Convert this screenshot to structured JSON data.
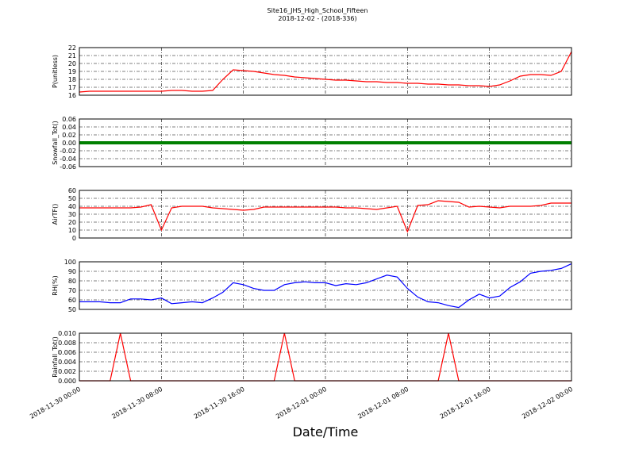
{
  "title": "Site16_JHS_High_School_Fifteen",
  "subtitle": "2018-12-02 - (2018-336)",
  "x_label": "Date/Time",
  "xlim": [
    "2018-11-30 00:00",
    "2018-12-02 00:00"
  ],
  "xticks": [
    "2018-11-30 00:00",
    "2018-11-30 08:00",
    "2018-11-30 16:00",
    "2018-12-01 00:00",
    "2018-12-01 08:00",
    "2018-12-01 16:00",
    "2018-12-02 00:00"
  ],
  "x": [
    "2018-11-30 00:00",
    "2018-11-30 01:00",
    "2018-11-30 02:00",
    "2018-11-30 03:00",
    "2018-11-30 04:00",
    "2018-11-30 05:00",
    "2018-11-30 06:00",
    "2018-11-30 07:00",
    "2018-11-30 08:00",
    "2018-11-30 09:00",
    "2018-11-30 10:00",
    "2018-11-30 11:00",
    "2018-11-30 12:00",
    "2018-11-30 13:00",
    "2018-11-30 14:00",
    "2018-11-30 15:00",
    "2018-11-30 16:00",
    "2018-11-30 17:00",
    "2018-11-30 18:00",
    "2018-11-30 19:00",
    "2018-11-30 20:00",
    "2018-11-30 21:00",
    "2018-11-30 22:00",
    "2018-11-30 23:00",
    "2018-12-01 00:00",
    "2018-12-01 01:00",
    "2018-12-01 02:00",
    "2018-12-01 03:00",
    "2018-12-01 04:00",
    "2018-12-01 05:00",
    "2018-12-01 06:00",
    "2018-12-01 07:00",
    "2018-12-01 08:00",
    "2018-12-01 09:00",
    "2018-12-01 10:00",
    "2018-12-01 11:00",
    "2018-12-01 12:00",
    "2018-12-01 13:00",
    "2018-12-01 14:00",
    "2018-12-01 15:00",
    "2018-12-01 16:00",
    "2018-12-01 17:00",
    "2018-12-01 18:00",
    "2018-12-01 19:00",
    "2018-12-01 20:00",
    "2018-12-01 21:00",
    "2018-12-01 22:00",
    "2018-12-01 23:00",
    "2018-12-02 00:00"
  ],
  "chart_data": [
    {
      "type": "line",
      "y_label": "P(unitless)",
      "ylim": [
        16,
        22
      ],
      "yticks": [
        16,
        17,
        18,
        19,
        20,
        21,
        22
      ],
      "grid": true,
      "series": [
        {
          "name": "P",
          "color": "#ff0000",
          "values": [
            16.4,
            16.5,
            16.5,
            16.5,
            16.5,
            16.5,
            16.5,
            16.5,
            16.5,
            16.6,
            16.6,
            16.5,
            16.5,
            16.6,
            18.0,
            19.2,
            19.1,
            19.0,
            18.8,
            18.6,
            18.5,
            18.3,
            18.2,
            18.1,
            18.0,
            17.9,
            17.9,
            17.8,
            17.7,
            17.7,
            17.6,
            17.6,
            17.5,
            17.5,
            17.4,
            17.4,
            17.3,
            17.3,
            17.2,
            17.2,
            17.1,
            17.3,
            17.8,
            18.4,
            18.6,
            18.6,
            18.5,
            19.0,
            21.5
          ]
        }
      ]
    },
    {
      "type": "line",
      "y_label": "Snowfall_Tot()",
      "ylim": [
        -0.06,
        0.06
      ],
      "yticks": [
        -0.06,
        -0.04,
        -0.02,
        {
          "value": 0,
          "label": "0.00"
        },
        0.02,
        0.04,
        0.06
      ],
      "grid": true,
      "series": [
        {
          "name": "Snowfall_Tot",
          "color": "#008000",
          "width": 4,
          "values": [
            0,
            0,
            0,
            0,
            0,
            0,
            0,
            0,
            0,
            0,
            0,
            0,
            0,
            0,
            0,
            0,
            0,
            0,
            0,
            0,
            0,
            0,
            0,
            0,
            0,
            0,
            0,
            0,
            0,
            0,
            0,
            0,
            0,
            0,
            0,
            0,
            0,
            0,
            0,
            0,
            0,
            0,
            0,
            0,
            0,
            0,
            0,
            0,
            0
          ]
        }
      ]
    },
    {
      "type": "line",
      "y_label": "AirTF()",
      "ylim": [
        0,
        60
      ],
      "yticks": [
        0,
        10,
        20,
        30,
        40,
        50,
        60
      ],
      "grid": true,
      "series": [
        {
          "name": "AirTF",
          "color": "#ff0000",
          "values": [
            38,
            38,
            38,
            38,
            38,
            38,
            39,
            42,
            10,
            38,
            40,
            40,
            40,
            38,
            37,
            36,
            35,
            36,
            39,
            39,
            39,
            39,
            39,
            39,
            39,
            39,
            38,
            38,
            37,
            36,
            38,
            40,
            8,
            41,
            42,
            47,
            46,
            45,
            39,
            40,
            39,
            38,
            40,
            40,
            40,
            41,
            44,
            44,
            44
          ]
        }
      ]
    },
    {
      "type": "line",
      "y_label": "RH(%)",
      "ylim": [
        50,
        100
      ],
      "yticks": [
        50,
        60,
        70,
        80,
        90,
        100
      ],
      "grid": true,
      "series": [
        {
          "name": "RH",
          "color": "#0000ff",
          "values": [
            58,
            58,
            58,
            57,
            57,
            61,
            61,
            60,
            62,
            56,
            57,
            58,
            57,
            62,
            68,
            78,
            76,
            72,
            70,
            70,
            76,
            78,
            79,
            78,
            78,
            75,
            77,
            76,
            78,
            82,
            86,
            84,
            72,
            63,
            58,
            57,
            54,
            52,
            60,
            66,
            62,
            64,
            73,
            79,
            88,
            90,
            91,
            93,
            98
          ]
        }
      ]
    },
    {
      "type": "line",
      "y_label": "Rainfall_Tot()",
      "ylim": [
        0,
        0.01
      ],
      "yticks": [
        {
          "value": 0,
          "label": "0.000"
        },
        0.002,
        0.004,
        0.006,
        0.008,
        {
          "value": 0.01,
          "label": "0.010"
        }
      ],
      "grid": true,
      "series": [
        {
          "name": "Rainfall_Tot",
          "color": "#ff0000",
          "values": [
            0,
            0,
            0,
            0,
            0.01,
            0,
            0,
            0,
            0,
            0,
            0,
            0,
            0,
            0,
            0,
            0,
            0,
            0,
            0,
            0,
            0.01,
            0,
            0,
            0,
            0,
            0,
            0,
            0,
            0,
            0,
            0,
            0,
            0,
            0,
            0,
            0,
            0.01,
            0,
            0,
            0,
            0,
            0,
            0,
            0,
            0,
            0,
            0,
            0,
            0
          ]
        }
      ]
    }
  ]
}
